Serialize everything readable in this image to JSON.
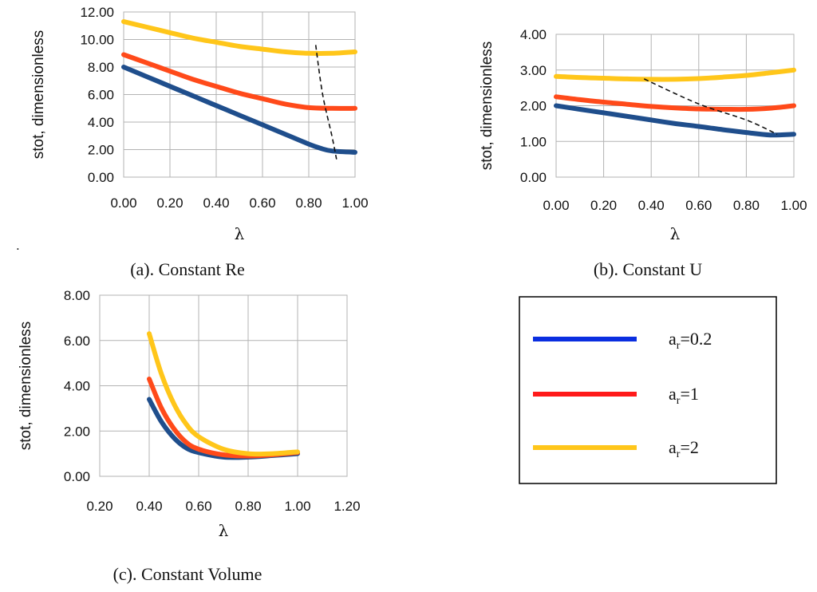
{
  "chart_data": [
    {
      "id": "a",
      "type": "line",
      "caption": "(a). Constant Re",
      "ylabel": "stot, dimensionless",
      "xlabel": "λ",
      "xlim": [
        0,
        1
      ],
      "ylim": [
        0,
        12
      ],
      "xticks": [
        "0.00",
        "0.20",
        "0.40",
        "0.60",
        "0.80",
        "1.00"
      ],
      "yticks": [
        "0.00",
        "2.00",
        "4.00",
        "6.00",
        "8.00",
        "10.00",
        "12.00"
      ],
      "series": [
        {
          "name": "ar=0.2",
          "color": "#1f4e8c",
          "x": [
            0,
            0.1,
            0.2,
            0.3,
            0.4,
            0.5,
            0.6,
            0.7,
            0.8,
            0.85,
            0.9,
            1.0
          ],
          "y": [
            8.0,
            7.3,
            6.6,
            5.9,
            5.2,
            4.5,
            3.8,
            3.1,
            2.4,
            2.1,
            1.9,
            1.8
          ]
        },
        {
          "name": "ar=1",
          "color": "#ff4a1a",
          "x": [
            0,
            0.1,
            0.2,
            0.3,
            0.4,
            0.5,
            0.6,
            0.7,
            0.8,
            0.9,
            1.0
          ],
          "y": [
            8.9,
            8.3,
            7.7,
            7.1,
            6.6,
            6.1,
            5.7,
            5.3,
            5.05,
            5.0,
            5.0
          ]
        },
        {
          "name": "ar=2",
          "color": "#ffc61a",
          "x": [
            0,
            0.1,
            0.2,
            0.3,
            0.4,
            0.5,
            0.6,
            0.7,
            0.8,
            0.9,
            1.0
          ],
          "y": [
            11.3,
            10.9,
            10.5,
            10.1,
            9.8,
            9.5,
            9.3,
            9.1,
            9.0,
            9.0,
            9.1
          ]
        }
      ],
      "dashed": {
        "x": [
          0.83,
          0.86,
          0.9,
          0.92
        ],
        "y": [
          9.6,
          6.0,
          3.0,
          1.3
        ]
      }
    },
    {
      "id": "b",
      "type": "line",
      "caption": "(b). Constant U",
      "ylabel": "stot, dimensionless",
      "xlabel": "λ",
      "xlim": [
        0,
        1
      ],
      "ylim": [
        0,
        4
      ],
      "xticks": [
        "0.00",
        "0.20",
        "0.40",
        "0.60",
        "0.80",
        "1.00"
      ],
      "yticks": [
        "0.00",
        "1.00",
        "2.00",
        "3.00",
        "4.00"
      ],
      "series": [
        {
          "name": "ar=0.2",
          "color": "#1f4e8c",
          "x": [
            0,
            0.1,
            0.2,
            0.3,
            0.4,
            0.5,
            0.6,
            0.7,
            0.8,
            0.9,
            1.0
          ],
          "y": [
            2.0,
            1.9,
            1.8,
            1.7,
            1.6,
            1.5,
            1.42,
            1.33,
            1.25,
            1.18,
            1.2
          ]
        },
        {
          "name": "ar=1",
          "color": "#ff4a1a",
          "x": [
            0,
            0.1,
            0.2,
            0.3,
            0.4,
            0.5,
            0.6,
            0.7,
            0.8,
            0.9,
            1.0
          ],
          "y": [
            2.25,
            2.17,
            2.1,
            2.04,
            1.98,
            1.94,
            1.91,
            1.9,
            1.9,
            1.93,
            2.0
          ]
        },
        {
          "name": "ar=2",
          "color": "#ffc61a",
          "x": [
            0,
            0.1,
            0.2,
            0.3,
            0.4,
            0.5,
            0.6,
            0.7,
            0.8,
            0.9,
            1.0
          ],
          "y": [
            2.82,
            2.79,
            2.77,
            2.75,
            2.74,
            2.74,
            2.76,
            2.8,
            2.85,
            2.92,
            3.0
          ]
        }
      ],
      "dashed": {
        "x": [
          0.37,
          0.6,
          0.8,
          0.93
        ],
        "y": [
          2.75,
          2.05,
          1.6,
          1.2
        ]
      }
    },
    {
      "id": "c",
      "type": "line",
      "caption": "(c). Constant Volume",
      "ylabel": "stot, dimensionless",
      "xlabel": "λ",
      "xlim": [
        0.2,
        1.2
      ],
      "ylim": [
        0,
        8
      ],
      "xticks": [
        "0.20",
        "0.40",
        "0.60",
        "0.80",
        "1.00",
        "1.20"
      ],
      "yticks": [
        "0.00",
        "2.00",
        "4.00",
        "6.00",
        "8.00"
      ],
      "series": [
        {
          "name": "ar=0.2",
          "color": "#1f4e8c",
          "x": [
            0.4,
            0.45,
            0.5,
            0.55,
            0.6,
            0.7,
            0.8,
            0.9,
            1.0
          ],
          "y": [
            3.4,
            2.4,
            1.7,
            1.25,
            1.05,
            0.85,
            0.85,
            0.92,
            1.0
          ]
        },
        {
          "name": "ar=1",
          "color": "#ff4a1a",
          "x": [
            0.4,
            0.45,
            0.5,
            0.55,
            0.6,
            0.7,
            0.8,
            0.9,
            1.0
          ],
          "y": [
            4.3,
            3.0,
            2.1,
            1.5,
            1.2,
            0.95,
            0.9,
            0.95,
            1.05
          ]
        },
        {
          "name": "ar=2",
          "color": "#ffc61a",
          "x": [
            0.4,
            0.45,
            0.5,
            0.55,
            0.6,
            0.7,
            0.8,
            0.9,
            1.0
          ],
          "y": [
            6.3,
            4.5,
            3.2,
            2.3,
            1.75,
            1.2,
            1.0,
            1.0,
            1.08
          ]
        }
      ],
      "dashed": null
    }
  ],
  "legend": {
    "items": [
      {
        "main": "a",
        "sub": "r",
        "rest": "=0.2",
        "color": "#0a2ee0"
      },
      {
        "main": "a",
        "sub": "r",
        "rest": "=1",
        "color": "#ff1a1a"
      },
      {
        "main": "a",
        "sub": "r",
        "rest": "=2",
        "color": "#ffc61a"
      }
    ]
  },
  "stray_mark": "."
}
